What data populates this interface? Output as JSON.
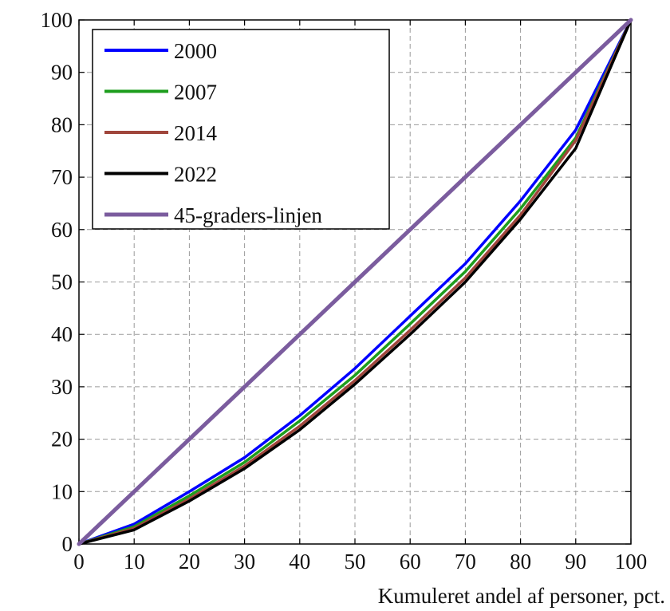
{
  "chart_data": {
    "type": "line",
    "title": "",
    "xlabel": "Kumuleret andel af personer, pct.",
    "ylabel": "",
    "xlim": [
      0,
      100
    ],
    "ylim": [
      0,
      100
    ],
    "x_ticks": [
      "0",
      "10",
      "20",
      "30",
      "40",
      "50",
      "60",
      "70",
      "80",
      "90",
      "100"
    ],
    "y_ticks": [
      "0",
      "10",
      "20",
      "30",
      "40",
      "50",
      "60",
      "70",
      "80",
      "90",
      "100"
    ],
    "grid": true,
    "legend_position": "top-left",
    "x": [
      0,
      10,
      20,
      30,
      40,
      50,
      60,
      70,
      80,
      90,
      100
    ],
    "series": [
      {
        "name": "2000",
        "color": "#0000ff",
        "values": [
          0,
          3.8,
          10,
          16.5,
          24.5,
          33.5,
          43.5,
          53.5,
          65.5,
          79,
          100
        ]
      },
      {
        "name": "2007",
        "color": "#1e9e1e",
        "values": [
          0,
          3.3,
          9.2,
          15.6,
          23.5,
          32.2,
          42,
          52,
          64,
          77.5,
          100
        ]
      },
      {
        "name": "2014",
        "color": "#a0463c",
        "values": [
          0,
          3.0,
          8.6,
          14.9,
          22.5,
          31.2,
          40.8,
          50.8,
          62.8,
          77,
          100
        ]
      },
      {
        "name": "2022",
        "color": "#000000",
        "values": [
          0,
          2.7,
          8.2,
          14.4,
          21.8,
          30.5,
          40,
          50,
          62,
          75.5,
          100
        ]
      },
      {
        "name": "45-graders-linjen",
        "color": "#7b5c9e",
        "values": [
          0,
          10,
          20,
          30,
          40,
          50,
          60,
          70,
          80,
          90,
          100
        ]
      }
    ]
  }
}
